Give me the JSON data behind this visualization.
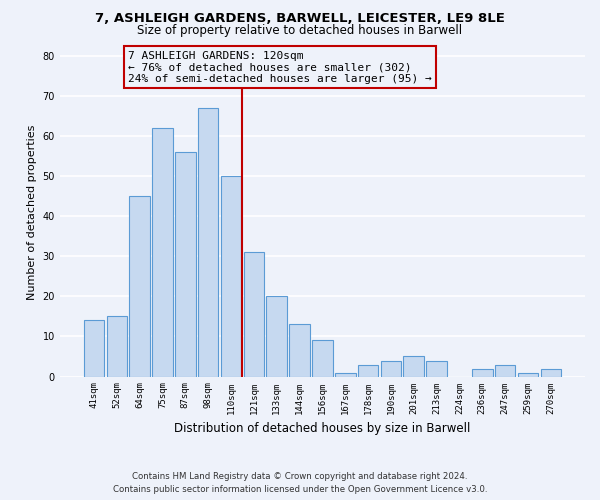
{
  "title": "7, ASHLEIGH GARDENS, BARWELL, LEICESTER, LE9 8LE",
  "subtitle": "Size of property relative to detached houses in Barwell",
  "xlabel": "Distribution of detached houses by size in Barwell",
  "ylabel": "Number of detached properties",
  "categories": [
    "41sqm",
    "52sqm",
    "64sqm",
    "75sqm",
    "87sqm",
    "98sqm",
    "110sqm",
    "121sqm",
    "133sqm",
    "144sqm",
    "156sqm",
    "167sqm",
    "178sqm",
    "190sqm",
    "201sqm",
    "213sqm",
    "224sqm",
    "236sqm",
    "247sqm",
    "259sqm",
    "270sqm"
  ],
  "values": [
    14,
    15,
    45,
    62,
    56,
    67,
    50,
    31,
    20,
    13,
    9,
    1,
    3,
    4,
    5,
    4,
    0,
    2,
    3,
    1,
    2
  ],
  "bar_color": "#c6d9f0",
  "bar_edge_color": "#5b9bd5",
  "highlight_line_color": "#c00000",
  "annotation_title": "7 ASHLEIGH GARDENS: 120sqm",
  "annotation_line1": "← 76% of detached houses are smaller (302)",
  "annotation_line2": "24% of semi-detached houses are larger (95) →",
  "annotation_box_edge_color": "#c00000",
  "ylim": [
    0,
    82
  ],
  "yticks": [
    0,
    10,
    20,
    30,
    40,
    50,
    60,
    70,
    80
  ],
  "background_color": "#eef2fa",
  "footer_line1": "Contains HM Land Registry data © Crown copyright and database right 2024.",
  "footer_line2": "Contains public sector information licensed under the Open Government Licence v3.0."
}
